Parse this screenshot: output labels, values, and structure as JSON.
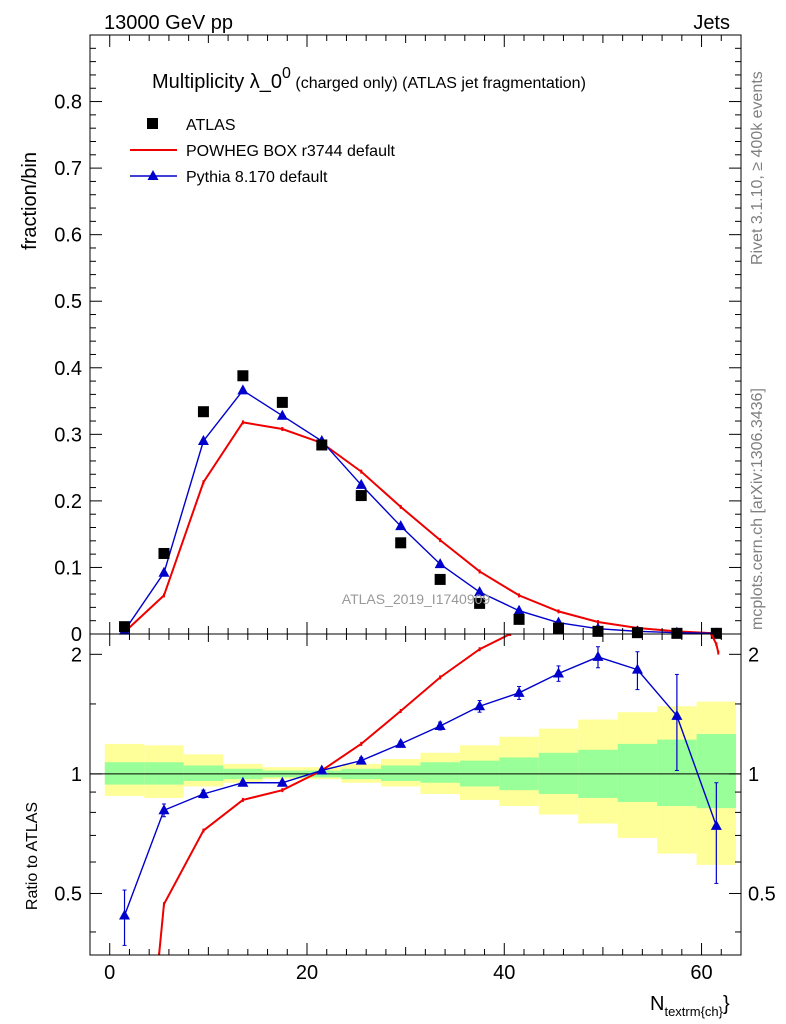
{
  "header": {
    "left": "13000 GeV pp",
    "right": "Jets"
  },
  "side_text": {
    "rivet": "Rivet 3.1.10, ≥ 400k events",
    "mcplots": "mcplots.cern.ch [arXiv:1306.3436]"
  },
  "watermark": "ATLAS_2019_I1740909",
  "colors": {
    "data": "#000000",
    "powheg": "#ee0000",
    "pythia": "#0000cc",
    "band_inner": "#99ff99",
    "band_outer": "#ffff99"
  },
  "chart_data": [
    {
      "type": "scatter",
      "title": "Multiplicity λ_0",
      "title_sup": "0",
      "title_rest": " (charged only) (ATLAS jet fragmentation)",
      "ylabel": "fraction/bin",
      "xlim": [
        -2,
        64
      ],
      "ylim": [
        0,
        0.9
      ],
      "yticks": [
        0,
        0.1,
        0.2,
        0.3,
        0.4,
        0.5,
        0.6,
        0.7,
        0.8
      ],
      "x": [
        1.5,
        5.5,
        9.5,
        13.5,
        17.5,
        21.5,
        25.5,
        29.5,
        33.5,
        37.5,
        41.5,
        45.5,
        49.5,
        53.5,
        57.5,
        61.5
      ],
      "series": [
        {
          "name": "ATLAS",
          "style": "squares",
          "values": [
            0.011,
            0.121,
            0.334,
            0.388,
            0.348,
            0.284,
            0.208,
            0.137,
            0.082,
            0.046,
            0.022,
            0.009,
            0.004,
            0.002,
            0.001,
            0.001
          ]
        },
        {
          "name": "POWHEG BOX r3744 default",
          "style": "line",
          "values": [
            0.003,
            0.058,
            0.228,
            0.318,
            0.308,
            0.287,
            0.244,
            0.191,
            0.141,
            0.094,
            0.058,
            0.034,
            0.018,
            0.009,
            0.004,
            0.001
          ]
        },
        {
          "name": "Pythia 8.170 default",
          "style": "triangles",
          "values": [
            0.005,
            0.092,
            0.29,
            0.366,
            0.328,
            0.29,
            0.224,
            0.162,
            0.105,
            0.063,
            0.035,
            0.017,
            0.008,
            0.004,
            0.002,
            0.001
          ]
        }
      ]
    },
    {
      "type": "line",
      "ylabel": "Ratio to ATLAS",
      "xlabel": "N",
      "xlabel_sub": "textrm{ch}",
      "xlim": [
        -2,
        64
      ],
      "ylim": [
        0.35,
        2.25
      ],
      "xticks": [
        0,
        20,
        40,
        60
      ],
      "yticks": [
        0.5,
        1,
        2
      ],
      "bin_edges": [
        -0.5,
        3.5,
        7.5,
        11.5,
        15.5,
        19.5,
        23.5,
        27.5,
        31.5,
        35.5,
        39.5,
        43.5,
        47.5,
        51.5,
        55.5,
        59.5,
        63.5
      ],
      "band_inner": [
        [
          0.94,
          1.07
        ],
        [
          0.94,
          1.07
        ],
        [
          0.96,
          1.05
        ],
        [
          0.97,
          1.03
        ],
        [
          0.98,
          1.02
        ],
        [
          0.98,
          1.02
        ],
        [
          0.97,
          1.03
        ],
        [
          0.96,
          1.05
        ],
        [
          0.95,
          1.07
        ],
        [
          0.93,
          1.08
        ],
        [
          0.91,
          1.1
        ],
        [
          0.89,
          1.13
        ],
        [
          0.87,
          1.15
        ],
        [
          0.85,
          1.19
        ],
        [
          0.83,
          1.22
        ],
        [
          0.82,
          1.26
        ]
      ],
      "band_outer": [
        [
          0.88,
          1.19
        ],
        [
          0.87,
          1.18
        ],
        [
          0.93,
          1.12
        ],
        [
          0.95,
          1.06
        ],
        [
          0.97,
          1.04
        ],
        [
          0.97,
          1.04
        ],
        [
          0.95,
          1.06
        ],
        [
          0.93,
          1.09
        ],
        [
          0.89,
          1.13
        ],
        [
          0.86,
          1.18
        ],
        [
          0.83,
          1.24
        ],
        [
          0.79,
          1.3
        ],
        [
          0.75,
          1.37
        ],
        [
          0.69,
          1.43
        ],
        [
          0.63,
          1.48
        ],
        [
          0.59,
          1.52
        ]
      ],
      "series": [
        {
          "name": "POWHEG BOX r3744 default",
          "style": "line",
          "x": [
            5.0,
            5.5,
            9.5,
            13.5,
            17.5,
            21.5,
            25.5,
            29.5,
            33.5,
            37.5,
            40.6
          ],
          "values": [
            0.35,
            0.47,
            0.72,
            0.86,
            0.91,
            1.02,
            1.19,
            1.44,
            1.75,
            2.06,
            2.25
          ]
        },
        {
          "name": "POWHEG BOX r3744 default (tail)",
          "style": "line",
          "x": [
            61.0,
            61.5,
            61.7
          ],
          "values": [
            2.25,
            2.12,
            2.02
          ]
        },
        {
          "name": "Pythia 8.170 default",
          "style": "triangles",
          "x": [
            1.5,
            5.5,
            9.5,
            13.5,
            17.5,
            21.5,
            25.5,
            29.5,
            33.5,
            37.5,
            41.5,
            45.5,
            49.5,
            53.5,
            57.5,
            61.5
          ],
          "values": [
            0.44,
            0.81,
            0.89,
            0.95,
            0.95,
            1.02,
            1.08,
            1.19,
            1.32,
            1.48,
            1.6,
            1.79,
            1.97,
            1.83,
            1.4,
            0.74
          ],
          "err": [
            0.07,
            0.03,
            0.02,
            0.01,
            0.01,
            0.01,
            0.02,
            0.02,
            0.03,
            0.05,
            0.06,
            0.08,
            0.12,
            0.2,
            0.38,
            0.21
          ]
        }
      ],
      "ref_line": 1
    }
  ]
}
